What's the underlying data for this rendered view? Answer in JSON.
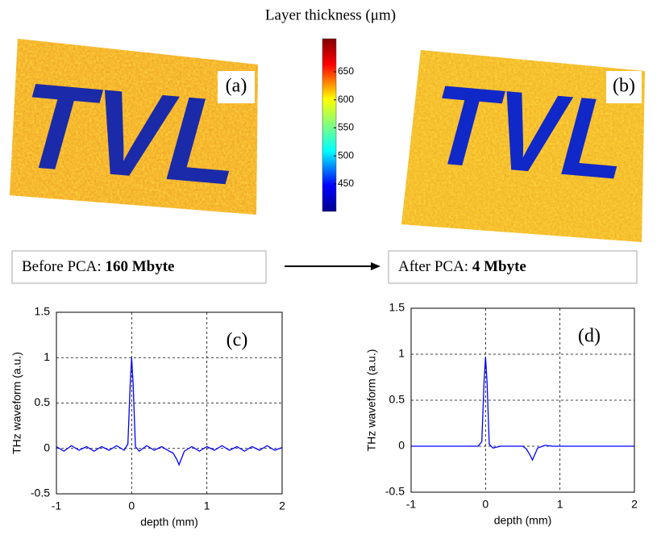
{
  "title": "Layer thickness (μm)",
  "colorbar": {
    "lim": [
      401,
      709
    ],
    "ticks": [
      450,
      500,
      550,
      600,
      650
    ]
  },
  "images": [
    {
      "label": "(a)",
      "text": "TVL"
    },
    {
      "label": "(b)",
      "text": "TVL"
    }
  ],
  "boxes": [
    {
      "prefix": "Before PCA:",
      "size": "160 Mbyte"
    },
    {
      "prefix": "After PCA:",
      "size": "4 Mbyte"
    }
  ],
  "chart_data": [
    {
      "type": "line",
      "annotation": "(c)",
      "xlabel": "depth (mm)",
      "ylabel": "THz waveform (a.u.)",
      "x": [
        -1,
        -0.9,
        -0.8,
        -0.7,
        -0.6,
        -0.5,
        -0.4,
        -0.3,
        -0.2,
        -0.1,
        -0.05,
        -0.02,
        0,
        0.02,
        0.05,
        0.1,
        0.2,
        0.3,
        0.4,
        0.5,
        0.55,
        0.6,
        0.63,
        0.7,
        0.8,
        0.9,
        1,
        1.1,
        1.2,
        1.3,
        1.4,
        1.5,
        1.6,
        1.7,
        1.8,
        1.9,
        2
      ],
      "series": [
        {
          "color": "#0000ff",
          "values": [
            0.02,
            -0.03,
            0.03,
            -0.02,
            0.02,
            -0.03,
            0.02,
            -0.02,
            0.03,
            -0.02,
            0.05,
            0.7,
            1,
            0.7,
            0.02,
            -0.03,
            0.03,
            -0.02,
            0.02,
            -0.03,
            -0.05,
            -0.12,
            -0.18,
            -0.03,
            0.02,
            -0.03,
            0.02,
            -0.02,
            0.03,
            -0.02,
            0.02,
            -0.03,
            0.02,
            -0.02,
            0.03,
            -0.02,
            0.01
          ]
        }
      ],
      "xlim": [
        -1,
        2
      ],
      "ylim": [
        -0.5,
        1.5
      ],
      "xticks": [
        -1,
        0,
        1,
        2
      ],
      "yticks": [
        -0.5,
        0,
        0.5,
        1,
        1.5
      ],
      "grid": true
    },
    {
      "type": "line",
      "annotation": "(d)",
      "xlabel": "depth (mm)",
      "ylabel": "THz waveform (a.u.)",
      "x": [
        -1,
        -0.9,
        -0.8,
        -0.7,
        -0.6,
        -0.5,
        -0.4,
        -0.3,
        -0.2,
        -0.1,
        -0.05,
        -0.02,
        0,
        0.02,
        0.05,
        0.1,
        0.2,
        0.3,
        0.4,
        0.5,
        0.55,
        0.6,
        0.63,
        0.7,
        0.8,
        0.9,
        1,
        1.1,
        1.2,
        1.3,
        1.4,
        1.5,
        1.6,
        1.7,
        1.8,
        1.9,
        2
      ],
      "series": [
        {
          "color": "#0000ff",
          "values": [
            0,
            0,
            0,
            0,
            0,
            0,
            0,
            0,
            0,
            0,
            0.05,
            0.7,
            0.97,
            0.7,
            0.02,
            -0.02,
            0,
            0,
            0,
            0,
            -0.03,
            -0.1,
            -0.15,
            -0.02,
            0.01,
            0,
            0,
            0,
            0,
            0,
            0,
            0,
            0,
            0,
            0,
            0,
            0
          ]
        }
      ],
      "xlim": [
        -1,
        2
      ],
      "ylim": [
        -0.5,
        1.5
      ],
      "xticks": [
        -1,
        0,
        1,
        2
      ],
      "yticks": [
        -0.5,
        0,
        0.5,
        1,
        1.5
      ],
      "grid": true
    }
  ]
}
